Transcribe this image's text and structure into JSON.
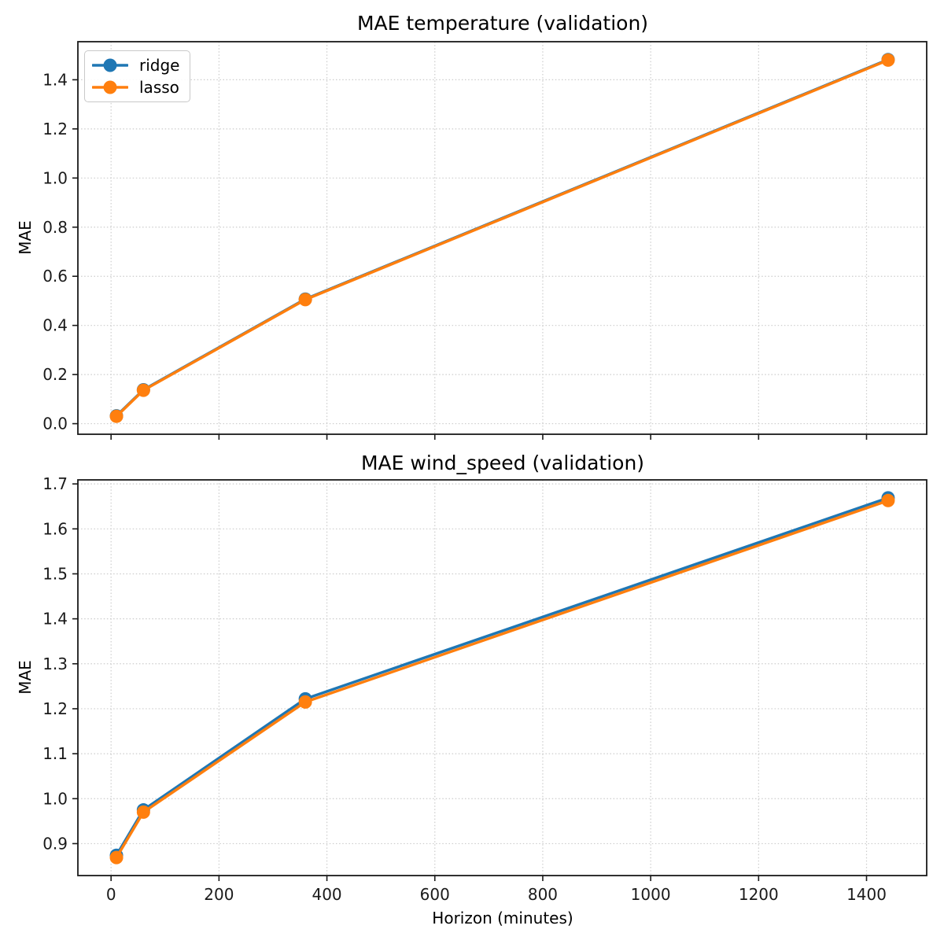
{
  "figure": {
    "background": "#ffffff",
    "spine_color": "#1a1a1a",
    "grid_color": "#cccccc"
  },
  "chart_data": [
    {
      "type": "line",
      "title": "MAE temperature (validation)",
      "xlabel": "",
      "ylabel": "MAE",
      "x": [
        10,
        60,
        360,
        1440
      ],
      "series": [
        {
          "name": "ridge",
          "color": "#1f77b4",
          "values": [
            0.032,
            0.138,
            0.507,
            1.482
          ]
        },
        {
          "name": "lasso",
          "color": "#ff7f0e",
          "values": [
            0.03,
            0.136,
            0.505,
            1.48
          ]
        }
      ],
      "xlim": [
        -61.5,
        1511.5
      ],
      "ylim": [
        -0.043,
        1.555
      ],
      "xticks": [
        0,
        200,
        400,
        600,
        800,
        1000,
        1200,
        1400
      ],
      "show_xtick_labels": false,
      "yticks": [
        0.0,
        0.2,
        0.4,
        0.6,
        0.8,
        1.0,
        1.2,
        1.4
      ],
      "grid": true,
      "legend": {
        "visible": true,
        "position": "upper left",
        "entries": [
          "ridge",
          "lasso"
        ]
      }
    },
    {
      "type": "line",
      "title": "MAE wind_speed (validation)",
      "xlabel": "Horizon (minutes)",
      "ylabel": "MAE",
      "x": [
        10,
        60,
        360,
        1440
      ],
      "series": [
        {
          "name": "ridge",
          "color": "#1f77b4",
          "values": [
            0.874,
            0.975,
            1.222,
            1.669
          ]
        },
        {
          "name": "lasso",
          "color": "#ff7f0e",
          "values": [
            0.869,
            0.97,
            1.215,
            1.663
          ]
        }
      ],
      "xlim": [
        -61.5,
        1511.5
      ],
      "ylim": [
        0.829,
        1.709
      ],
      "xticks": [
        0,
        200,
        400,
        600,
        800,
        1000,
        1200,
        1400
      ],
      "show_xtick_labels": true,
      "yticks": [
        0.9,
        1.0,
        1.1,
        1.2,
        1.3,
        1.4,
        1.5,
        1.6,
        1.7
      ],
      "grid": true,
      "legend": {
        "visible": false
      }
    }
  ]
}
